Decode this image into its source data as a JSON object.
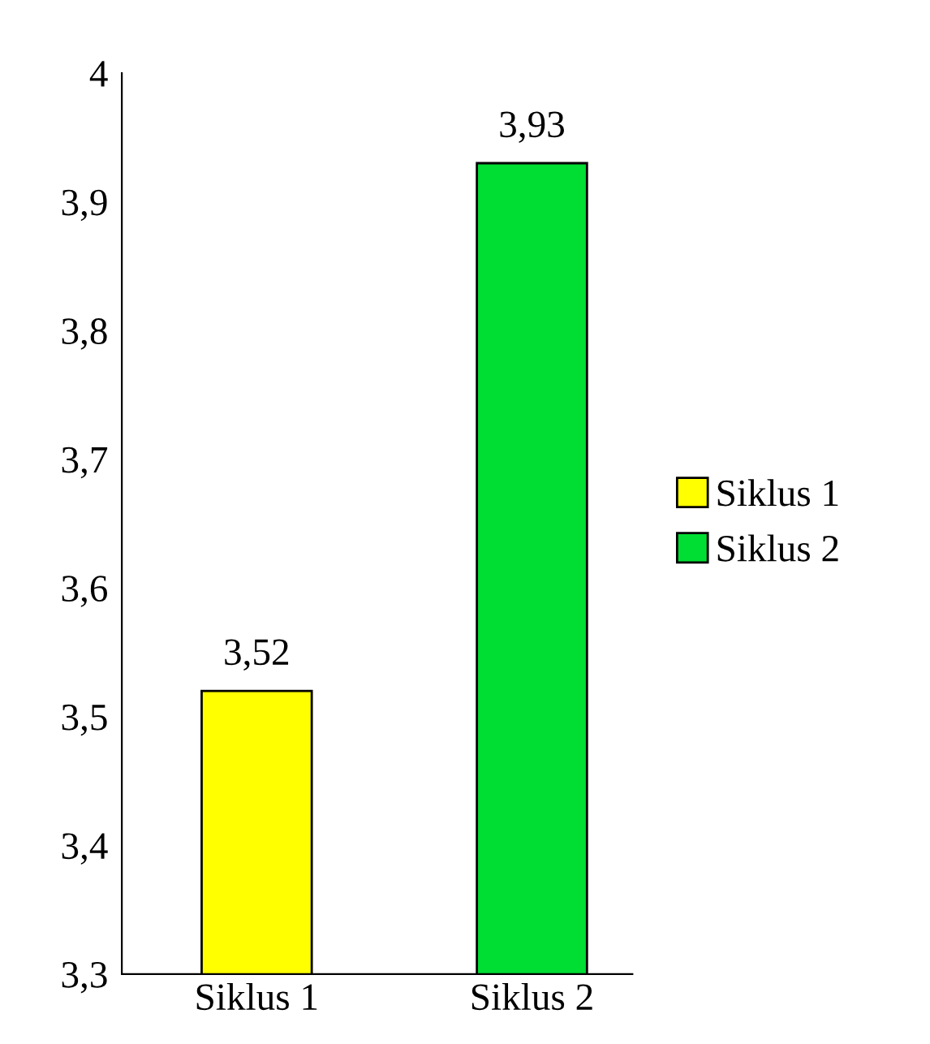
{
  "chart_data": {
    "type": "bar",
    "categories": [
      "Siklus 1",
      "Siklus 2"
    ],
    "series": [
      {
        "name": "Siklus 1",
        "color": "#ffff00",
        "values": [
          3.52,
          null
        ],
        "value_labels": [
          "3,52",
          null
        ]
      },
      {
        "name": "Siklus 2",
        "color": "#00dd33",
        "values": [
          null,
          3.93
        ],
        "value_labels": [
          null,
          "3,93"
        ]
      }
    ],
    "ylim": [
      3.3,
      4
    ],
    "yticks": [
      {
        "value": 3.3,
        "label": "3,3"
      },
      {
        "value": 3.4,
        "label": "3,4"
      },
      {
        "value": 3.5,
        "label": "3,5"
      },
      {
        "value": 3.6,
        "label": "3,6"
      },
      {
        "value": 3.7,
        "label": "3,7"
      },
      {
        "value": 3.8,
        "label": "3,8"
      },
      {
        "value": 3.9,
        "label": "3,9"
      },
      4
    ],
    "legend": "right",
    "grid": false
  }
}
